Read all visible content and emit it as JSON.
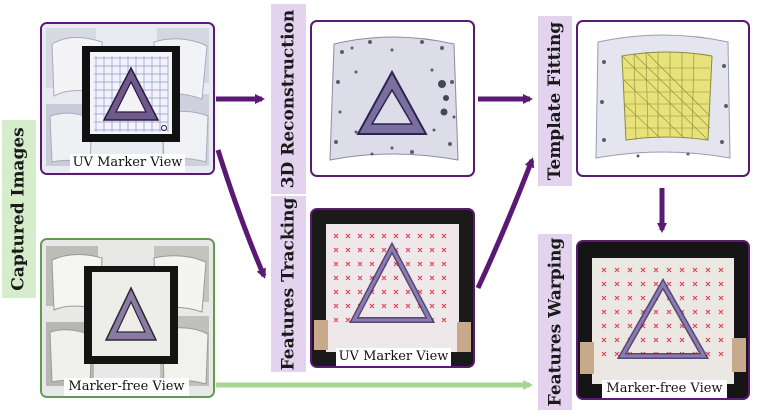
{
  "labels": {
    "captured_images": "Captured Images",
    "reconstruction": "3D Reconstruction",
    "tracking": "Features Tracking",
    "fitting": "Template Fitting",
    "warping": "Features Warping"
  },
  "captions": {
    "uv_view_left": "UV Marker View",
    "marker_free_left": "Marker-free View",
    "uv_view_tracking": "UV Marker View",
    "marker_free_warping": "Marker-free View"
  },
  "colors": {
    "purple": "#5a1a73",
    "green": "#a8d591",
    "green_border": "#5f9c4f",
    "lavender": "#e3d3ee",
    "mint": "#d6edcc",
    "template_yellow": "#e8e27a"
  }
}
